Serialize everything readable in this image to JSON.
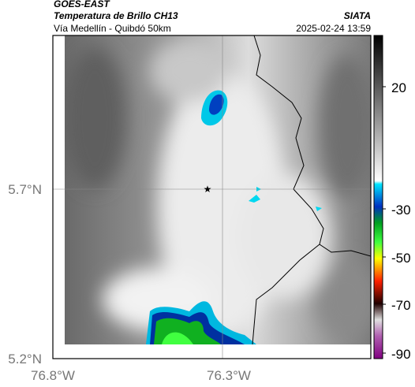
{
  "header": {
    "source": "GOES-EAST",
    "title": "Temperatura de Brillo CH13",
    "subtitle": "Vía Medellín - Quibdó 50km",
    "brand": "SIATA",
    "timestamp": "2025-02-24 13:59"
  },
  "map": {
    "lat_labels": [
      "5.7°N",
      "5.2°N"
    ],
    "lon_labels": [
      "76.8°W",
      "76.3°W"
    ]
  },
  "colorbar": {
    "tick_labels": [
      "20",
      "-30",
      "-50",
      "-70",
      "-90"
    ]
  }
}
